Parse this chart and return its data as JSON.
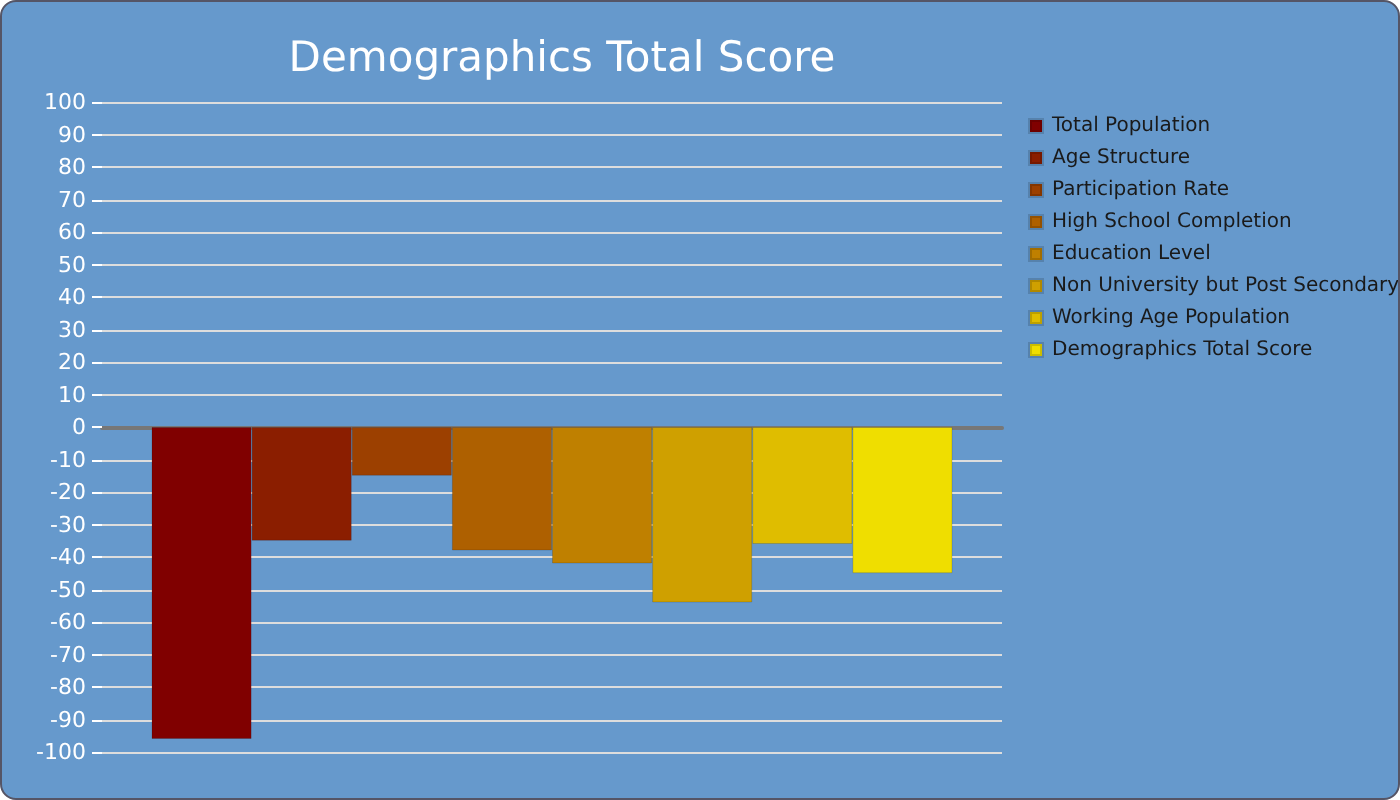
{
  "chart_data": {
    "type": "bar",
    "title": "Demographics Total Score",
    "categories": [
      null
    ],
    "series": [
      {
        "name": "Total Population",
        "color": "#800000",
        "values": [
          -96
        ]
      },
      {
        "name": "Age Structure",
        "color": "#8b1e00",
        "values": [
          -35
        ]
      },
      {
        "name": "Participation Rate",
        "color": "#9c4000",
        "values": [
          -15
        ]
      },
      {
        "name": "High School Completion",
        "color": "#ae6000",
        "values": [
          -38
        ]
      },
      {
        "name": "Education Level",
        "color": "#bf8000",
        "values": [
          -42
        ]
      },
      {
        "name": "Non University but Post Secondary",
        "color": "#cfa000",
        "values": [
          -54
        ]
      },
      {
        "name": "Working Age Population",
        "color": "#dfbd00",
        "values": [
          -36
        ]
      },
      {
        "name": "Demographics Total Score",
        "color": "#efde00",
        "values": [
          -45
        ]
      }
    ],
    "ylim": [
      -100,
      100
    ],
    "yticks": [
      -100,
      -90,
      -80,
      -70,
      -60,
      -50,
      -40,
      -30,
      -20,
      -10,
      0,
      10,
      20,
      30,
      40,
      50,
      60,
      70,
      80,
      90,
      100
    ],
    "grid": "y",
    "legend": "right"
  }
}
